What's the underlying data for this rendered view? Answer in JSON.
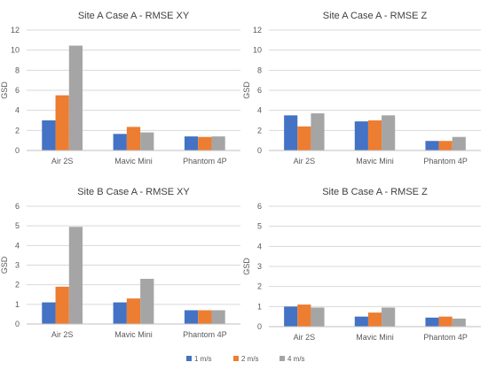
{
  "chart_data": [
    {
      "type": "bar",
      "title": "Site A Case A - RMSE XY",
      "xlabel": "",
      "ylabel": "GSD",
      "ylim": [
        0,
        12
      ],
      "yticks": [
        0,
        2,
        4,
        6,
        8,
        10,
        12
      ],
      "categories": [
        "Air 2S",
        "Mavic Mini",
        "Phantom 4P"
      ],
      "series": [
        {
          "name": "1 m/s",
          "values": [
            3.0,
            1.65,
            1.4
          ]
        },
        {
          "name": "2 m/s",
          "values": [
            5.5,
            2.35,
            1.35
          ]
        },
        {
          "name": "4 m/s",
          "values": [
            10.45,
            1.8,
            1.4
          ]
        }
      ]
    },
    {
      "type": "bar",
      "title": "Site A Case A - RMSE Z",
      "xlabel": "",
      "ylabel": "GSD",
      "ylim": [
        0,
        12
      ],
      "yticks": [
        0,
        2,
        4,
        6,
        8,
        10,
        12
      ],
      "categories": [
        "Air 2S",
        "Mavic Mini",
        "Phantom 4P"
      ],
      "series": [
        {
          "name": "1 m/s",
          "values": [
            3.5,
            2.9,
            0.95
          ]
        },
        {
          "name": "2 m/s",
          "values": [
            2.4,
            3.0,
            0.95
          ]
        },
        {
          "name": "4 m/s",
          "values": [
            3.7,
            3.5,
            1.35
          ]
        }
      ]
    },
    {
      "type": "bar",
      "title": "Site B Case A - RMSE XY",
      "xlabel": "",
      "ylabel": "GSD",
      "ylim": [
        0,
        6
      ],
      "yticks": [
        0,
        1,
        2,
        3,
        4,
        5,
        6
      ],
      "categories": [
        "Air 2S",
        "Mavic Mini",
        "Phantom 4P"
      ],
      "series": [
        {
          "name": "1 m/s",
          "values": [
            1.1,
            1.1,
            0.7
          ]
        },
        {
          "name": "2 m/s",
          "values": [
            1.9,
            1.3,
            0.7
          ]
        },
        {
          "name": "4 m/s",
          "values": [
            4.95,
            2.3,
            0.7
          ]
        }
      ]
    },
    {
      "type": "bar",
      "title": "Site B Case A - RMSE Z",
      "xlabel": "",
      "ylabel": "GSD",
      "ylim": [
        0,
        6
      ],
      "yticks": [
        0,
        1,
        2,
        3,
        4,
        5,
        6
      ],
      "categories": [
        "Air 2S",
        "Mavic Mini",
        "Phantom 4P"
      ],
      "series": [
        {
          "name": "1 m/s",
          "values": [
            1.0,
            0.5,
            0.45
          ]
        },
        {
          "name": "2 m/s",
          "values": [
            1.1,
            0.7,
            0.5
          ]
        },
        {
          "name": "4 m/s",
          "values": [
            0.95,
            0.95,
            0.4
          ]
        }
      ]
    }
  ],
  "legend": {
    "position": "bottom",
    "items": [
      "1 m/s",
      "2 m/s",
      "4 m/s"
    ]
  },
  "colors": {
    "series": [
      "#4472c4",
      "#ed7d31",
      "#a5a5a5"
    ],
    "gridline": "#d9d9d9",
    "text": "#595959",
    "title": "#404040"
  }
}
